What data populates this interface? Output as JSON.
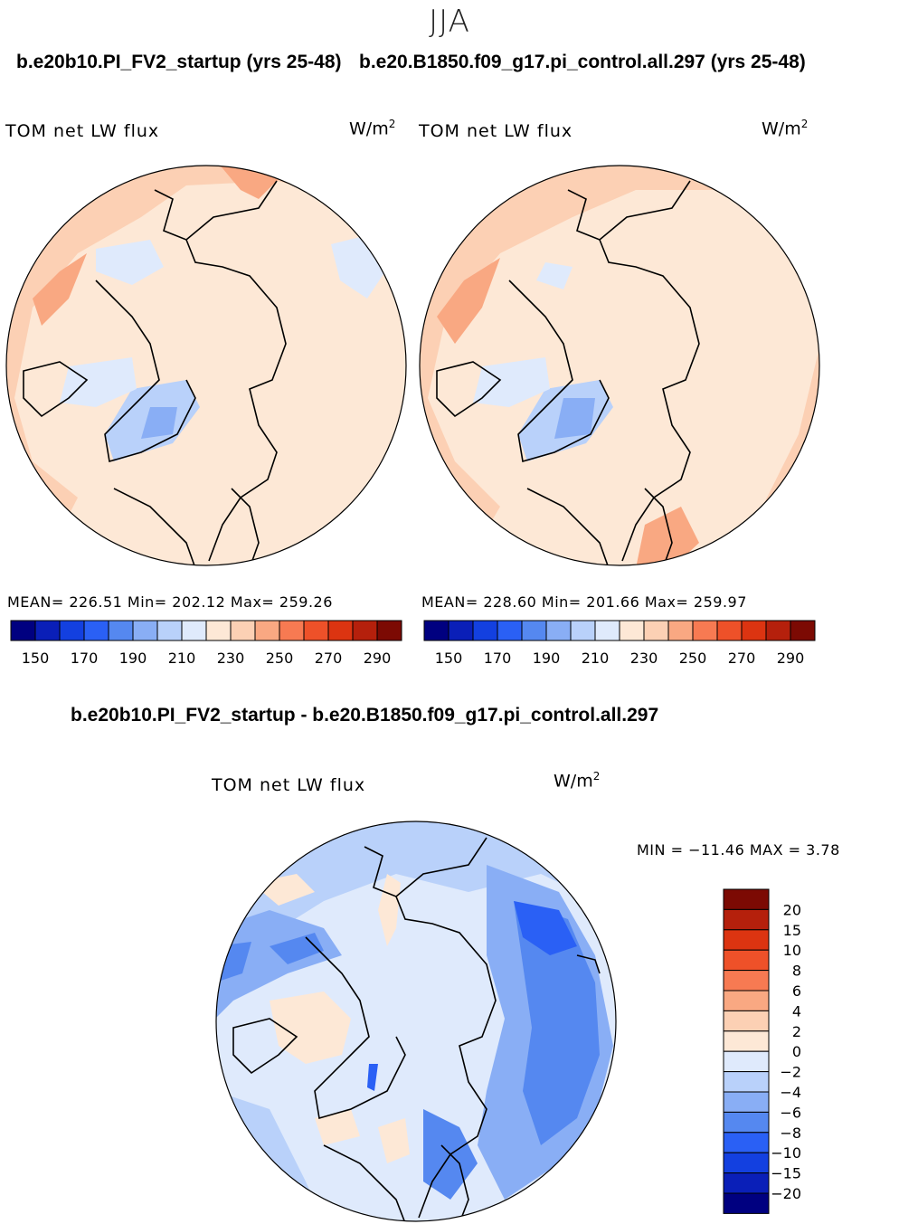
{
  "season": "JJA",
  "panels": [
    {
      "title": "b.e20b10.PI_FV2_startup (yrs 25-48)",
      "variable": "TOM net LW flux",
      "units": "W/m",
      "units_exp": "2",
      "stats": "MEAN= 226.51   Min= 202.12   Max= 259.26"
    },
    {
      "title": "b.e20.B1850.f09_g17.pi_control.all.297 (yrs 25-48)",
      "variable": "TOM net LW flux",
      "units": "W/m",
      "units_exp": "2",
      "stats": "MEAN= 228.60   Min= 201.66   Max= 259.97"
    }
  ],
  "colorbar_abs": {
    "colors": [
      "#000080",
      "#0a1fb8",
      "#1340e0",
      "#2a60f5",
      "#5588f0",
      "#89aef5",
      "#b9d1fa",
      "#dfeafc",
      "#fde8d6",
      "#fcd0b4",
      "#f9a882",
      "#f77a52",
      "#ee5129",
      "#dc3411",
      "#b5200c",
      "#7c0a03"
    ],
    "tick_labels": [
      "150",
      "170",
      "190",
      "210",
      "230",
      "250",
      "270",
      "290"
    ]
  },
  "diff": {
    "title": "b.e20b10.PI_FV2_startup - b.e20.B1850.f09_g17.pi_control.all.297",
    "variable": "TOM net LW flux",
    "units": "W/m",
    "units_exp": "2",
    "minmax": "MIN = −11.46 MAX =     3.78",
    "colorbar": {
      "colors": [
        "#7c0a03",
        "#b5200c",
        "#dc3411",
        "#ee5129",
        "#f77a52",
        "#f9a882",
        "#fcd0b4",
        "#fde8d6",
        "#dfeafc",
        "#b9d1fa",
        "#89aef5",
        "#5588f0",
        "#2a60f5",
        "#1340e0",
        "#0a1fb8",
        "#000080"
      ],
      "tick_labels": [
        "20",
        "15",
        "10",
        "8",
        "6",
        "4",
        "2",
        "0",
        "−2",
        "−4",
        "−6",
        "−8",
        "−10",
        "−15",
        "−20"
      ]
    }
  }
}
